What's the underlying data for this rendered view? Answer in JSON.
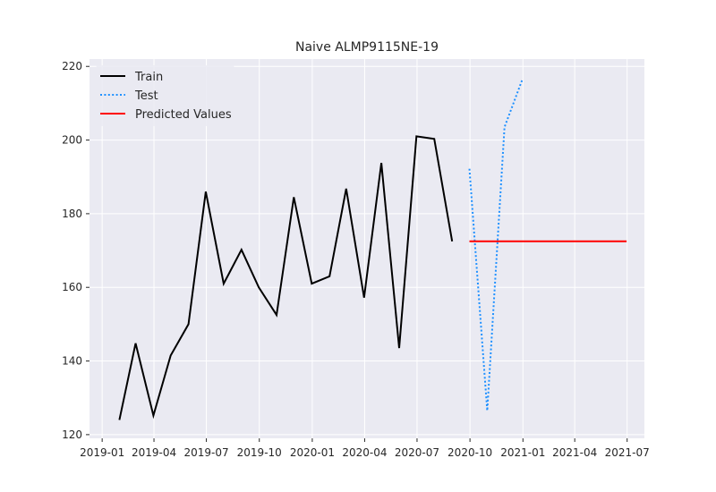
{
  "chart_data": {
    "type": "line",
    "title": "Naive ALMP9115NE-19",
    "xlabel": "",
    "ylabel": "",
    "x_axis": "date",
    "xlim": [
      "2018-12-10",
      "2021-07-31"
    ],
    "ylim": [
      119,
      222
    ],
    "x_ticks": [
      "2019-01-01",
      "2019-04-01",
      "2019-07-01",
      "2019-10-01",
      "2020-01-01",
      "2020-04-01",
      "2020-07-01",
      "2020-10-01",
      "2021-01-01",
      "2021-04-01",
      "2021-07-01"
    ],
    "x_tick_labels": [
      "2019-01",
      "2019-04",
      "2019-07",
      "2019-10",
      "2020-01",
      "2020-04",
      "2020-07",
      "2020-10",
      "2021-01",
      "2021-04",
      "2021-07"
    ],
    "y_ticks": [
      120,
      140,
      160,
      180,
      200,
      220
    ],
    "y_tick_labels": [
      "120",
      "140",
      "160",
      "180",
      "200",
      "220"
    ],
    "grid": true,
    "legend": "top-left",
    "background": "#eaeaf2",
    "series": [
      {
        "name": "Train",
        "color": "#000000",
        "style": "solid",
        "x": [
          "2019-01-31",
          "2019-02-28",
          "2019-03-31",
          "2019-04-30",
          "2019-05-31",
          "2019-06-30",
          "2019-07-31",
          "2019-08-31",
          "2019-09-30",
          "2019-10-31",
          "2019-11-30",
          "2019-12-31",
          "2020-01-31",
          "2020-02-29",
          "2020-03-31",
          "2020-04-30",
          "2020-05-31",
          "2020-06-30",
          "2020-07-31",
          "2020-08-31"
        ],
        "y": [
          124,
          144.8,
          125.2,
          141.5,
          150,
          186,
          161,
          170.2,
          160,
          152.5,
          184.5,
          161,
          163,
          186.8,
          157.2,
          193.8,
          143.5,
          201,
          200.3,
          172.5
        ]
      },
      {
        "name": "Test",
        "color": "#1e90ff",
        "style": "dotted",
        "x": [
          "2020-09-30",
          "2020-10-31",
          "2020-11-30",
          "2020-12-31"
        ],
        "y": [
          192.2,
          126.5,
          203.5,
          216.5
        ]
      },
      {
        "name": "Predicted Values",
        "color": "#ff0000",
        "style": "solid",
        "x": [
          "2020-09-30",
          "2021-06-30"
        ],
        "y": [
          172.5,
          172.5
        ]
      }
    ]
  }
}
